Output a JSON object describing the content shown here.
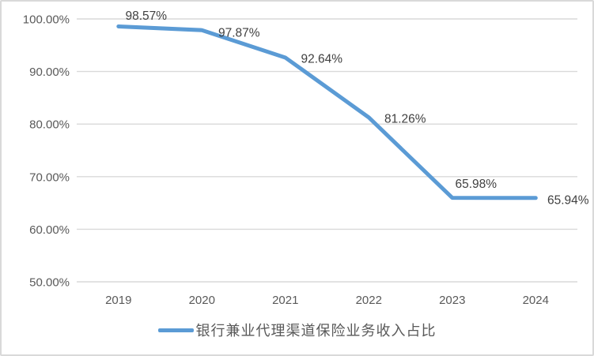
{
  "chart_data": {
    "type": "line",
    "categories": [
      "2019",
      "2020",
      "2021",
      "2022",
      "2023",
      "2024"
    ],
    "series": [
      {
        "name": "银行兼业代理渠道保险业务收入占比",
        "values": [
          98.57,
          97.87,
          92.64,
          81.26,
          65.98,
          65.94
        ]
      }
    ],
    "data_labels": [
      "98.57%",
      "97.87%",
      "92.64%",
      "81.26%",
      "65.98%",
      "65.94%"
    ],
    "y_axis": {
      "tick_labels": [
        "100.00%",
        "90.00%",
        "80.00%",
        "70.00%",
        "60.00%",
        "50.00%"
      ],
      "min": 50,
      "max": 100,
      "step": 10
    },
    "xlabel": "",
    "ylabel": "",
    "grid": true,
    "legend_position": "bottom",
    "colors": {
      "line": "#5B9BD5",
      "gridline": "#D9D9D9",
      "canvas_border": "#D9D9D9",
      "axis_text": "#595959",
      "data_label_text": "#404040"
    }
  }
}
